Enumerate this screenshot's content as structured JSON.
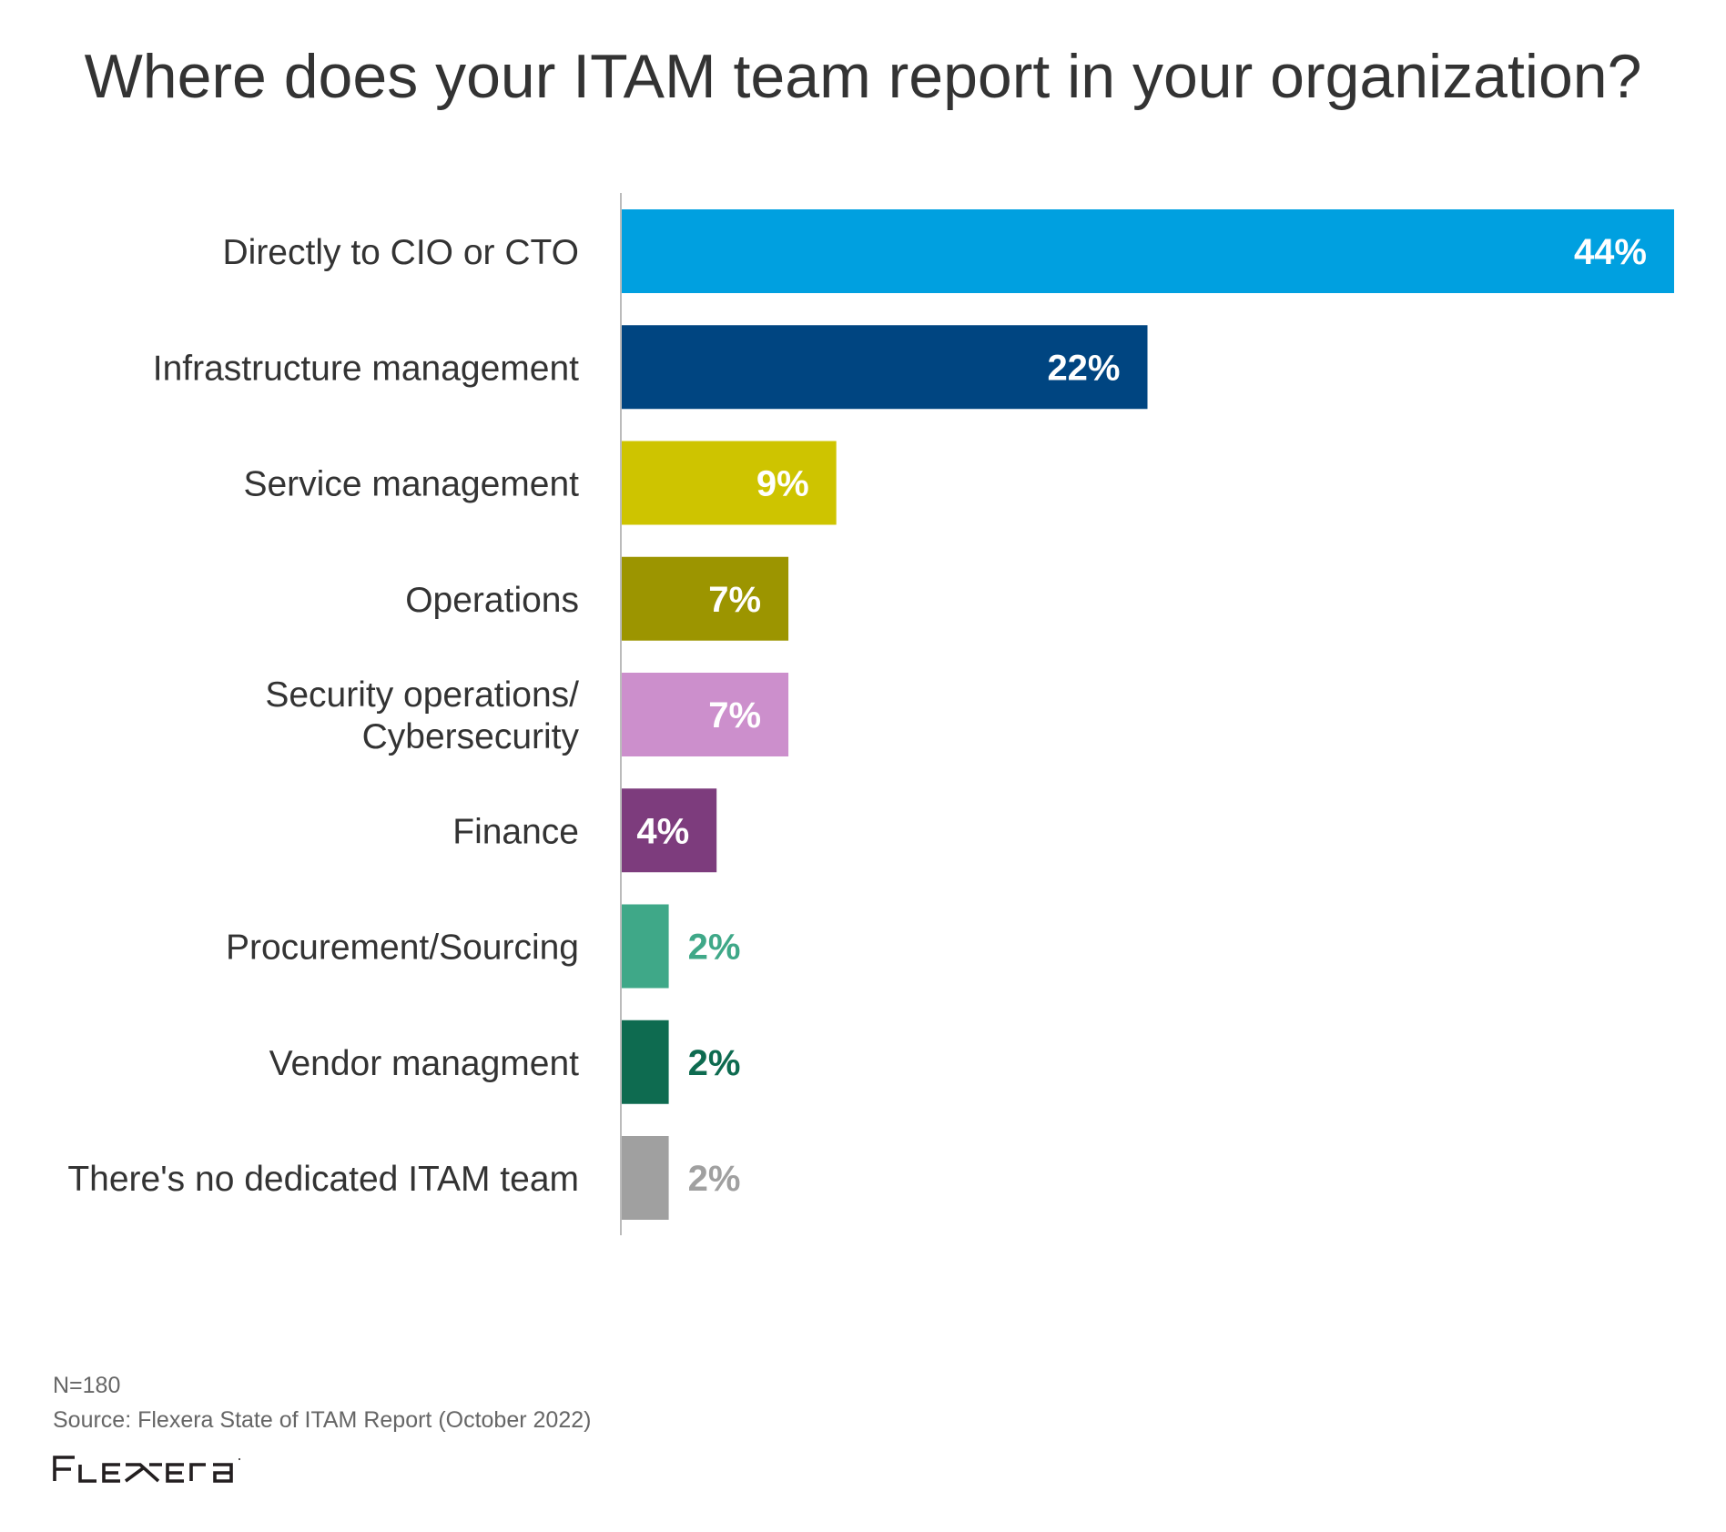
{
  "chart_data": {
    "type": "bar",
    "orientation": "horizontal",
    "title": "Where does your ITAM team report in your organization?",
    "xlabel": "",
    "ylabel": "",
    "unit": "%",
    "xlim": [
      0,
      44
    ],
    "grid": false,
    "legend": "none",
    "categories": [
      [
        "Directly to CIO or CTO"
      ],
      [
        "Infrastructure management"
      ],
      [
        "Service management"
      ],
      [
        "Operations"
      ],
      [
        "Security operations/",
        "Cybersecurity"
      ],
      [
        "Finance"
      ],
      [
        "Procurement/Sourcing"
      ],
      [
        "Vendor managment"
      ],
      [
        "There's no dedicated ITAM team"
      ]
    ],
    "values": [
      44,
      22,
      9,
      7,
      7,
      4,
      2,
      2,
      2
    ],
    "data_labels": [
      "44%",
      "22%",
      "9%",
      "7%",
      "7%",
      "4%",
      "2%",
      "2%",
      "2%"
    ],
    "colors": [
      "#00A0E0",
      "#004581",
      "#CEC400",
      "#9C9500",
      "#CC8FCC",
      "#7D3C7D",
      "#3FA888",
      "#0E6B50",
      "#A0A0A0"
    ]
  },
  "footer": {
    "n": "N=180",
    "source": "Source: Flexera State of ITAM Report (October 2022)",
    "logo_text": "Flexera"
  }
}
